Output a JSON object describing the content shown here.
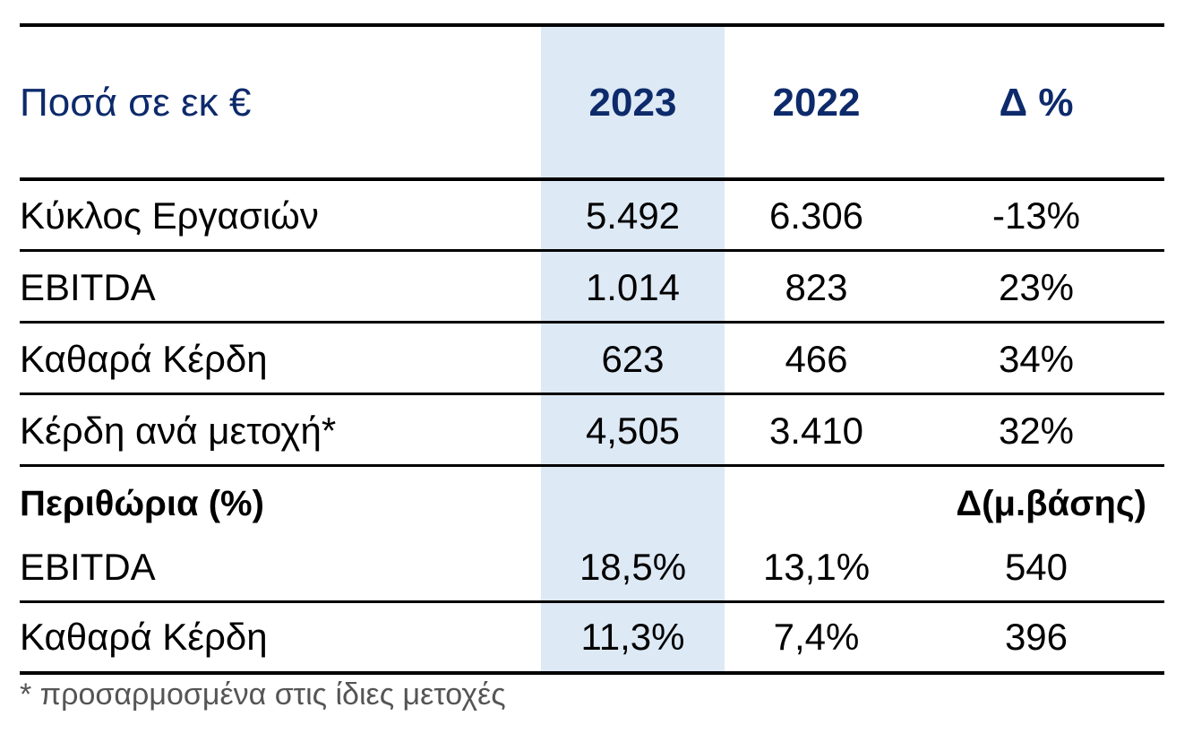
{
  "colors": {
    "header_text": "#0d2a6b",
    "highlight_column": "#dde9f5",
    "footnote_text": "#555555"
  },
  "header": {
    "label": "Ποσά σε εκ €",
    "col_2023": "2023",
    "col_2022": "2022",
    "col_delta": "Δ %"
  },
  "rows": [
    {
      "label": "Κύκλος Εργασιών",
      "v2023": "5.492",
      "v2022": "6.306",
      "delta": "-13%"
    },
    {
      "label": "EBITDA",
      "v2023": "1.014",
      "v2022": "823",
      "delta": "23%"
    },
    {
      "label": "Καθαρά Κέρδη",
      "v2023": "623",
      "v2022": "466",
      "delta": "34%"
    },
    {
      "label": "Κέρδη ανά μετοχή*",
      "v2023": "4,505",
      "v2022": "3.410",
      "delta": "32%"
    }
  ],
  "margins_section": {
    "label": "Περιθώρια (%)",
    "delta_header": "Δ(μ.βάσης)"
  },
  "margin_rows": [
    {
      "label": "EBITDA",
      "v2023": "18,5%",
      "v2022": "13,1%",
      "delta": "540"
    },
    {
      "label": "Καθαρά Κέρδη",
      "v2023": "11,3%",
      "v2022": "7,4%",
      "delta": "396"
    }
  ],
  "footnote": "* προσαρμοσμένα στις ίδιες μετοχές"
}
